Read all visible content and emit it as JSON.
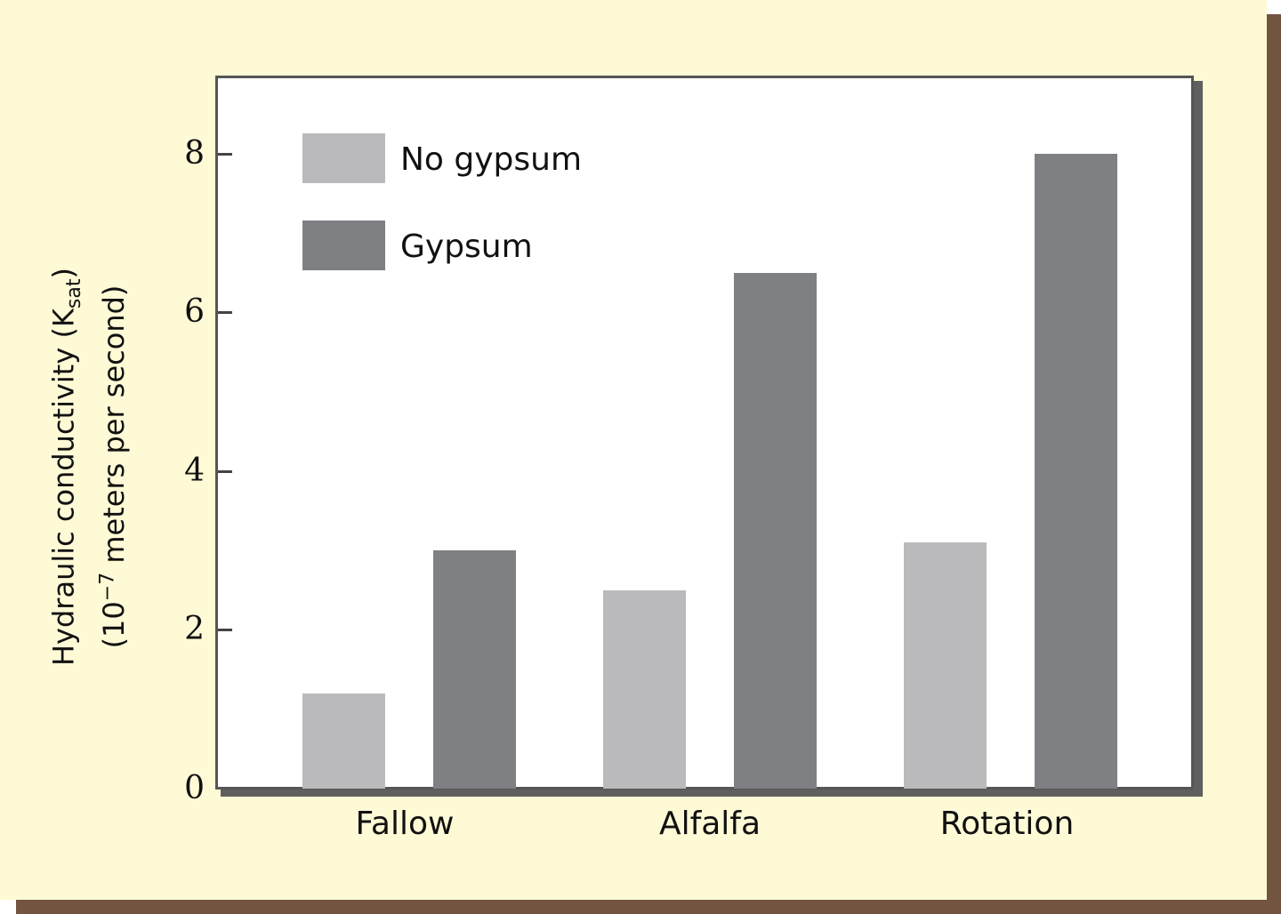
{
  "chart_data": {
    "type": "bar",
    "title": "",
    "categories": [
      "Fallow",
      "Alfalfa",
      "Rotation"
    ],
    "series": [
      {
        "name": "No gypsum",
        "color": "#bababd",
        "values": [
          1.2,
          2.5,
          3.1
        ]
      },
      {
        "name": "Gypsum",
        "color": "#7f8084",
        "values": [
          3.0,
          6.5,
          8.0
        ]
      }
    ],
    "xlabel": "",
    "ylabel": "Hydraulic conductivity (Ksat) (10−7 meters per second)",
    "ylabel_line1_prefix": "Hydraulic conductivity (K",
    "ylabel_line1_sub": "sat",
    "ylabel_line1_suffix": ")",
    "ylabel_line2_prefix": "(10",
    "ylabel_line2_sup": "−7",
    "ylabel_line2_suffix": " meters per second)",
    "ylim": [
      0,
      9
    ],
    "yticks": [
      "0",
      "2",
      "4",
      "6",
      "8"
    ],
    "legend_position": "upper-left",
    "grid": false
  },
  "legend": {
    "items": [
      {
        "label": "No gypsum",
        "color": "#bababd"
      },
      {
        "label": "Gypsum",
        "color": "#7f8084"
      }
    ]
  },
  "colors": {
    "background": "#fefad6",
    "frame_shadow": "#735440",
    "plot_border": "#555555"
  }
}
